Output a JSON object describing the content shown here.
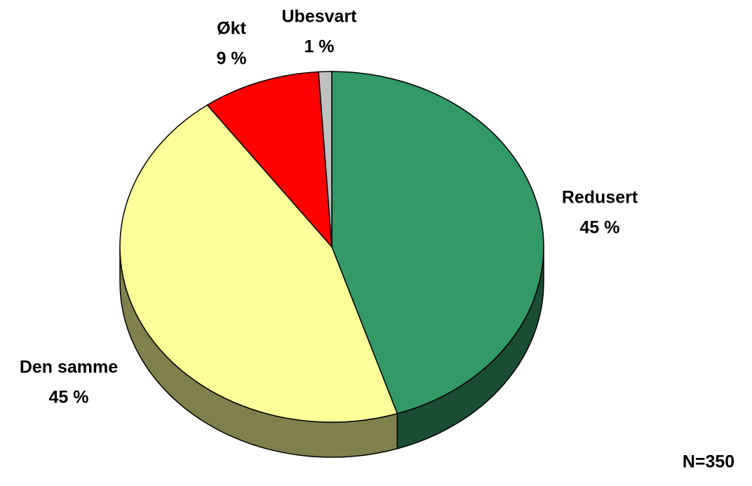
{
  "chart_data": {
    "type": "pie",
    "categories": [
      "Redusert",
      "Den samme",
      "Økt",
      "Ubesvart"
    ],
    "values": [
      45,
      45,
      9,
      1
    ],
    "value_labels": [
      "45 %",
      "45 %",
      "9 %",
      "1 %"
    ],
    "colors": [
      "#339966",
      "#ffff99",
      "#ff0000",
      "#c0c0c0"
    ],
    "annotation": "N=350"
  }
}
